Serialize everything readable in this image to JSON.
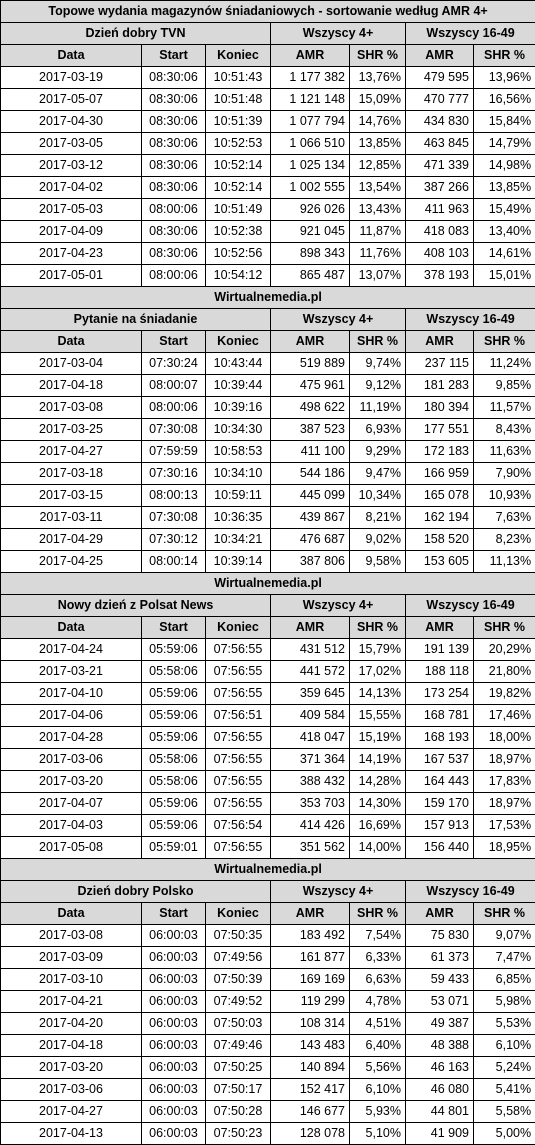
{
  "title": "Topowe wydania magazynów śniadaniowych - sortowanie według AMR 4+",
  "separator": "Wirtualnemedia.pl",
  "group_4": "Wszyscy 4+",
  "group_16": "Wszyscy 16-49",
  "columns": {
    "date": "Data",
    "start": "Start",
    "end": "Koniec",
    "amr": "AMR",
    "shr": "SHR %"
  },
  "sections": [
    {
      "name": "Dzień dobry TVN",
      "rows": [
        [
          "2017-03-19",
          "08:30:06",
          "10:51:43",
          "1 177 382",
          "13,76%",
          "479 595",
          "13,96%"
        ],
        [
          "2017-05-07",
          "08:30:06",
          "10:51:48",
          "1 121 148",
          "15,09%",
          "470 777",
          "16,56%"
        ],
        [
          "2017-04-30",
          "08:30:06",
          "10:51:39",
          "1 077 794",
          "14,76%",
          "434 830",
          "15,84%"
        ],
        [
          "2017-03-05",
          "08:30:06",
          "10:52:53",
          "1 066 510",
          "13,85%",
          "463 845",
          "14,79%"
        ],
        [
          "2017-03-12",
          "08:30:06",
          "10:52:14",
          "1 025 134",
          "12,85%",
          "471 339",
          "14,98%"
        ],
        [
          "2017-04-02",
          "08:30:06",
          "10:52:14",
          "1 002 555",
          "13,54%",
          "387 266",
          "13,85%"
        ],
        [
          "2017-05-03",
          "08:00:06",
          "10:51:49",
          "926 026",
          "13,43%",
          "411 963",
          "15,49%"
        ],
        [
          "2017-04-09",
          "08:30:06",
          "10:52:38",
          "921 045",
          "11,87%",
          "418 083",
          "13,40%"
        ],
        [
          "2017-04-23",
          "08:30:06",
          "10:52:56",
          "898 343",
          "11,76%",
          "408 103",
          "14,61%"
        ],
        [
          "2017-05-01",
          "08:00:06",
          "10:54:12",
          "865 487",
          "13,07%",
          "378 193",
          "15,01%"
        ]
      ]
    },
    {
      "name": "Pytanie na śniadanie",
      "rows": [
        [
          "2017-03-04",
          "07:30:24",
          "10:43:44",
          "519 889",
          "9,74%",
          "237 115",
          "11,24%"
        ],
        [
          "2017-04-18",
          "08:00:07",
          "10:39:44",
          "475 961",
          "9,12%",
          "181 283",
          "9,85%"
        ],
        [
          "2017-03-08",
          "08:00:06",
          "10:39:16",
          "498 622",
          "11,19%",
          "180 394",
          "11,57%"
        ],
        [
          "2017-03-25",
          "07:30:08",
          "10:34:30",
          "387 523",
          "6,93%",
          "177 551",
          "8,43%"
        ],
        [
          "2017-04-27",
          "07:59:59",
          "10:58:53",
          "411 100",
          "9,29%",
          "172 183",
          "11,63%"
        ],
        [
          "2017-03-18",
          "07:30:16",
          "10:34:10",
          "544 186",
          "9,47%",
          "166 959",
          "7,90%"
        ],
        [
          "2017-03-15",
          "08:00:13",
          "10:59:11",
          "445 099",
          "10,34%",
          "165 078",
          "10,93%"
        ],
        [
          "2017-03-11",
          "07:30:08",
          "10:36:35",
          "439 867",
          "8,21%",
          "162 194",
          "7,63%"
        ],
        [
          "2017-04-29",
          "07:30:12",
          "10:34:21",
          "476 687",
          "9,02%",
          "158 520",
          "8,23%"
        ],
        [
          "2017-04-25",
          "08:00:14",
          "10:39:14",
          "387 806",
          "9,58%",
          "153 605",
          "11,13%"
        ]
      ]
    },
    {
      "name": "Nowy dzień z Polsat News",
      "rows": [
        [
          "2017-04-24",
          "05:59:06",
          "07:56:55",
          "431 512",
          "15,79%",
          "191 139",
          "20,29%"
        ],
        [
          "2017-03-21",
          "05:58:06",
          "07:56:55",
          "441 572",
          "17,02%",
          "188 118",
          "21,80%"
        ],
        [
          "2017-04-10",
          "05:59:06",
          "07:56:55",
          "359 645",
          "14,13%",
          "173 254",
          "19,82%"
        ],
        [
          "2017-04-06",
          "05:59:06",
          "07:56:51",
          "409 584",
          "15,55%",
          "168 781",
          "17,46%"
        ],
        [
          "2017-04-28",
          "05:59:06",
          "07:56:55",
          "418 047",
          "15,19%",
          "168 193",
          "18,00%"
        ],
        [
          "2017-03-06",
          "05:58:06",
          "07:56:55",
          "371 364",
          "14,19%",
          "167 537",
          "18,97%"
        ],
        [
          "2017-03-20",
          "05:58:06",
          "07:56:55",
          "388 432",
          "14,28%",
          "164 443",
          "17,83%"
        ],
        [
          "2017-04-07",
          "05:59:06",
          "07:56:55",
          "353 703",
          "14,30%",
          "159 170",
          "18,97%"
        ],
        [
          "2017-04-03",
          "05:59:06",
          "07:56:54",
          "414 426",
          "16,69%",
          "157 913",
          "17,53%"
        ],
        [
          "2017-05-08",
          "05:59:01",
          "07:56:55",
          "351 562",
          "14,00%",
          "156 440",
          "18,95%"
        ]
      ]
    },
    {
      "name": "Dzień dobry Polsko",
      "rows": [
        [
          "2017-03-08",
          "06:00:03",
          "07:50:35",
          "183 492",
          "7,54%",
          "75 830",
          "9,07%"
        ],
        [
          "2017-03-09",
          "06:00:03",
          "07:49:56",
          "161 877",
          "6,33%",
          "61 373",
          "7,47%"
        ],
        [
          "2017-03-10",
          "06:00:03",
          "07:50:39",
          "169 169",
          "6,63%",
          "59 433",
          "6,85%"
        ],
        [
          "2017-04-21",
          "06:00:03",
          "07:49:52",
          "119 299",
          "4,78%",
          "53 071",
          "5,98%"
        ],
        [
          "2017-04-20",
          "06:00:03",
          "07:50:03",
          "108 314",
          "4,51%",
          "49 387",
          "5,53%"
        ],
        [
          "2017-04-18",
          "06:00:03",
          "07:49:46",
          "143 483",
          "6,40%",
          "48 388",
          "6,10%"
        ],
        [
          "2017-03-20",
          "06:00:03",
          "07:50:25",
          "140 894",
          "5,56%",
          "46 163",
          "5,24%"
        ],
        [
          "2017-03-06",
          "06:00:03",
          "07:50:17",
          "152 417",
          "6,10%",
          "46 080",
          "5,41%"
        ],
        [
          "2017-04-27",
          "06:00:03",
          "07:50:28",
          "146 677",
          "5,93%",
          "44 801",
          "5,58%"
        ],
        [
          "2017-04-13",
          "06:00:03",
          "07:50:23",
          "128 078",
          "5,10%",
          "41 909",
          "5,00%"
        ]
      ]
    }
  ]
}
